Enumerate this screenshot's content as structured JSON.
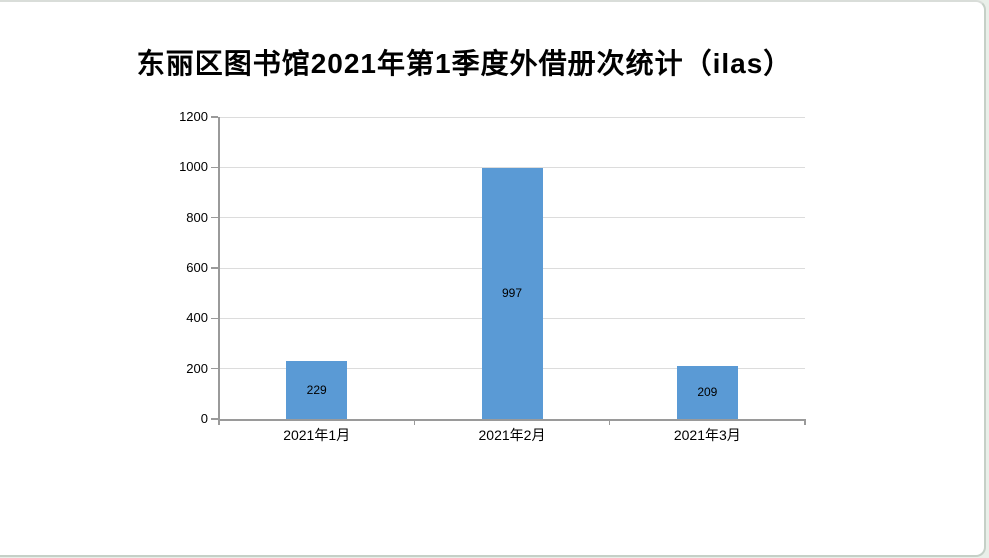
{
  "window": {
    "background": "#e9efe9",
    "panel_background": "#ffffff",
    "panel_border_color": "#c5d0c7"
  },
  "chart_data": {
    "type": "bar",
    "title": "东丽区图书馆2021年第1季度外借册次统计（ilas）",
    "categories": [
      "2021年1月",
      "2021年2月",
      "2021年3月"
    ],
    "values": [
      229,
      997,
      209
    ],
    "data_labels": [
      "229",
      "997",
      "209"
    ],
    "xlabel": "",
    "ylabel": "",
    "ylim": [
      0,
      1200
    ],
    "ytick_step": 200,
    "yticks": [
      "0",
      "200",
      "400",
      "600",
      "800",
      "1000",
      "1200"
    ],
    "grid": true,
    "legend": "none",
    "bar_color": "#5a9ad5",
    "gridline_color": "#dcdcdc",
    "axis_color": "#9a9a9a",
    "text_color": "#000000"
  }
}
